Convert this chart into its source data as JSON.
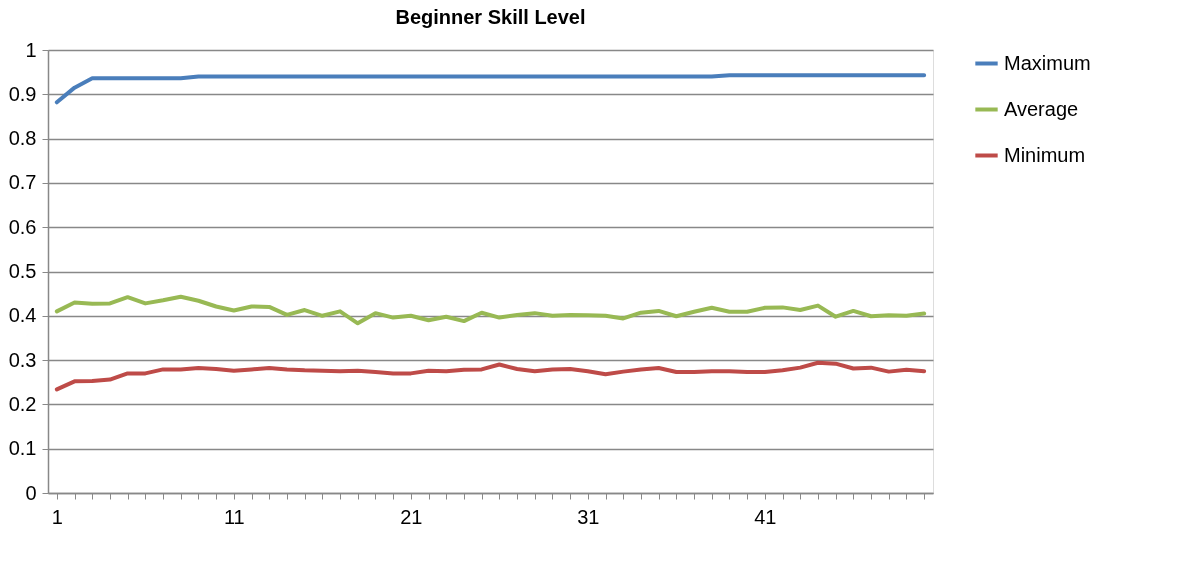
{
  "chart_data": {
    "type": "line",
    "title": "Beginner Skill Level",
    "categories": [
      "1",
      null,
      null,
      null,
      null,
      null,
      null,
      null,
      null,
      null,
      "11",
      null,
      null,
      null,
      null,
      null,
      null,
      null,
      null,
      null,
      "21",
      null,
      null,
      null,
      null,
      null,
      null,
      null,
      null,
      null,
      "31",
      null,
      null,
      null,
      null,
      null,
      null,
      null,
      null,
      null,
      "41",
      null,
      null,
      null,
      null,
      null,
      null,
      null,
      null,
      null
    ],
    "series": [
      {
        "name": "Maximum",
        "color": "#4a7ebb",
        "values": [
          0.882,
          0.915,
          0.936,
          0.936,
          0.936,
          0.936,
          0.936,
          0.936,
          0.94,
          0.94,
          0.94,
          0.94,
          0.94,
          0.94,
          0.94,
          0.94,
          0.94,
          0.94,
          0.94,
          0.94,
          0.94,
          0.94,
          0.94,
          0.94,
          0.94,
          0.94,
          0.94,
          0.94,
          0.94,
          0.94,
          0.94,
          0.94,
          0.94,
          0.94,
          0.94,
          0.94,
          0.94,
          0.94,
          0.943,
          0.943,
          0.943,
          0.943,
          0.943,
          0.943,
          0.943,
          0.943,
          0.943,
          0.943,
          0.943,
          0.943
        ]
      },
      {
        "name": "Average",
        "color": "#98b954",
        "values": [
          0.41,
          0.43,
          0.427,
          0.428,
          0.442,
          0.428,
          0.435,
          0.443,
          0.434,
          0.421,
          0.412,
          0.421,
          0.42,
          0.402,
          0.413,
          0.4,
          0.41,
          0.383,
          0.406,
          0.396,
          0.4,
          0.39,
          0.398,
          0.388,
          0.407,
          0.396,
          0.402,
          0.406,
          0.4,
          0.402,
          0.401,
          0.4,
          0.394,
          0.407,
          0.411,
          0.399,
          0.409,
          0.418,
          0.409,
          0.409,
          0.418,
          0.419,
          0.413,
          0.423,
          0.398,
          0.411,
          0.399,
          0.401,
          0.4,
          0.405
        ]
      },
      {
        "name": "Minimum",
        "color": "#be4b48",
        "values": [
          0.234,
          0.252,
          0.253,
          0.256,
          0.27,
          0.27,
          0.279,
          0.279,
          0.282,
          0.28,
          0.276,
          0.279,
          0.282,
          0.279,
          0.277,
          0.276,
          0.275,
          0.276,
          0.273,
          0.27,
          0.27,
          0.276,
          0.275,
          0.278,
          0.279,
          0.29,
          0.28,
          0.275,
          0.279,
          0.28,
          0.275,
          0.268,
          0.274,
          0.279,
          0.282,
          0.273,
          0.273,
          0.275,
          0.275,
          0.273,
          0.273,
          0.277,
          0.283,
          0.294,
          0.292,
          0.281,
          0.283,
          0.274,
          0.278,
          0.275
        ]
      }
    ],
    "ylim": [
      0,
      1
    ],
    "yticks": [
      0,
      0.1,
      0.2,
      0.3,
      0.4,
      0.5,
      0.6,
      0.7,
      0.8,
      0.9,
      1
    ],
    "grid": "y",
    "legend": "right",
    "marker": "none",
    "line_style": "solid"
  }
}
